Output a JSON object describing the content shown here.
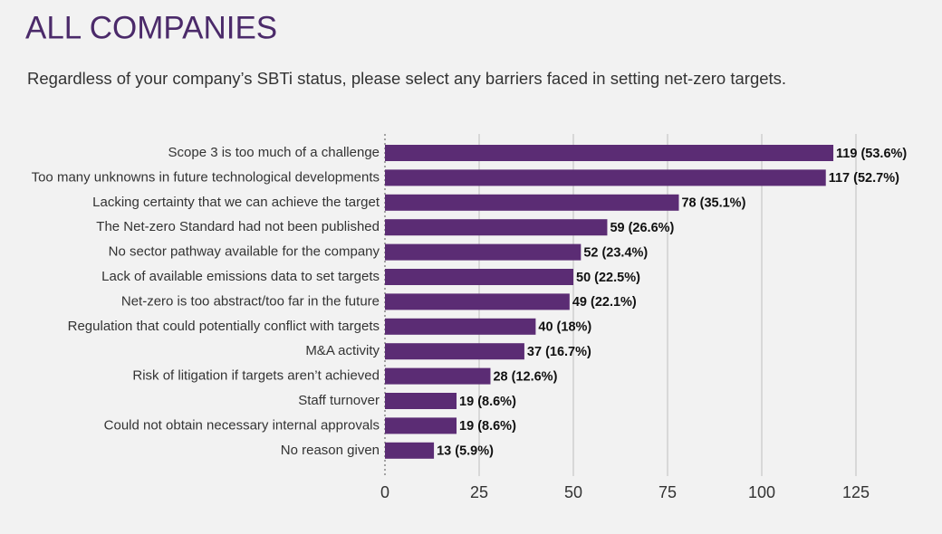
{
  "chart_data": {
    "type": "bar",
    "orientation": "horizontal",
    "title": "ALL COMPANIES",
    "subtitle": "Regardless of your company’s SBTi status, please select any barriers faced in setting net-zero targets.",
    "categories": [
      "Scope 3 is too much of a challenge",
      "Too many unknowns in future technological developments",
      "Lacking certainty that we can achieve the target",
      "The Net-zero Standard had not been published",
      "No sector pathway available for the company",
      "Lack of available emissions data to set targets",
      "Net-zero is too abstract/too far in the future",
      "Regulation that could potentially conflict with targets",
      "M&A activity",
      "Risk of litigation if targets aren’t achieved",
      "Staff turnover",
      "Could not obtain necessary internal approvals",
      "No reason given"
    ],
    "values": [
      119,
      117,
      78,
      59,
      52,
      50,
      49,
      40,
      37,
      28,
      19,
      19,
      13
    ],
    "value_labels": [
      "119 (53.6%)",
      "117 (52.7%)",
      "78 (35.1%)",
      "59 (26.6%)",
      "52 (23.4%)",
      "50 (22.5%)",
      "49 (22.1%)",
      "40 (18%)",
      "37 (16.7%)",
      "28 (12.6%)",
      "19 (8.6%)",
      "19 (8.6%)",
      "13 (5.9%)"
    ],
    "color": "#5b2c74",
    "xlim": [
      0,
      125
    ],
    "xticks": [
      0,
      25,
      50,
      75,
      100,
      125
    ],
    "grid": true
  }
}
